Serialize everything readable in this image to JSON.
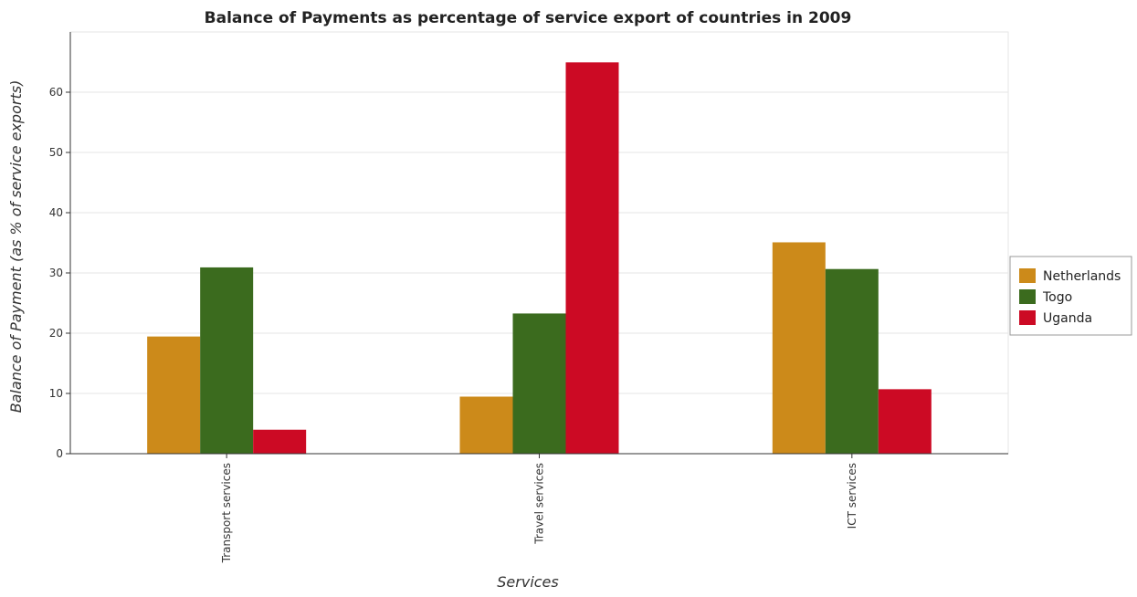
{
  "chart_data": {
    "type": "bar",
    "title": "Balance of Payments as percentage of service export of countries in 2009",
    "xlabel": "Services",
    "ylabel": "Balance of Payment (as % of service exports)",
    "categories": [
      "Transport services",
      "Travel services",
      "ICT services"
    ],
    "series": [
      {
        "name": "Netherlands",
        "color": "#cc8a1a",
        "values": [
          19.45,
          9.47,
          35.08
        ]
      },
      {
        "name": "Togo",
        "color": "#3b6b1e",
        "values": [
          30.92,
          23.27,
          30.65
        ]
      },
      {
        "name": "Uganda",
        "color": "#cc0a24",
        "values": [
          3.98,
          64.95,
          10.7
        ]
      }
    ],
    "ylim": [
      0,
      70
    ],
    "yticks": [
      0,
      10,
      20,
      30,
      40,
      50,
      60
    ],
    "grid": true,
    "legend_position": "right"
  }
}
